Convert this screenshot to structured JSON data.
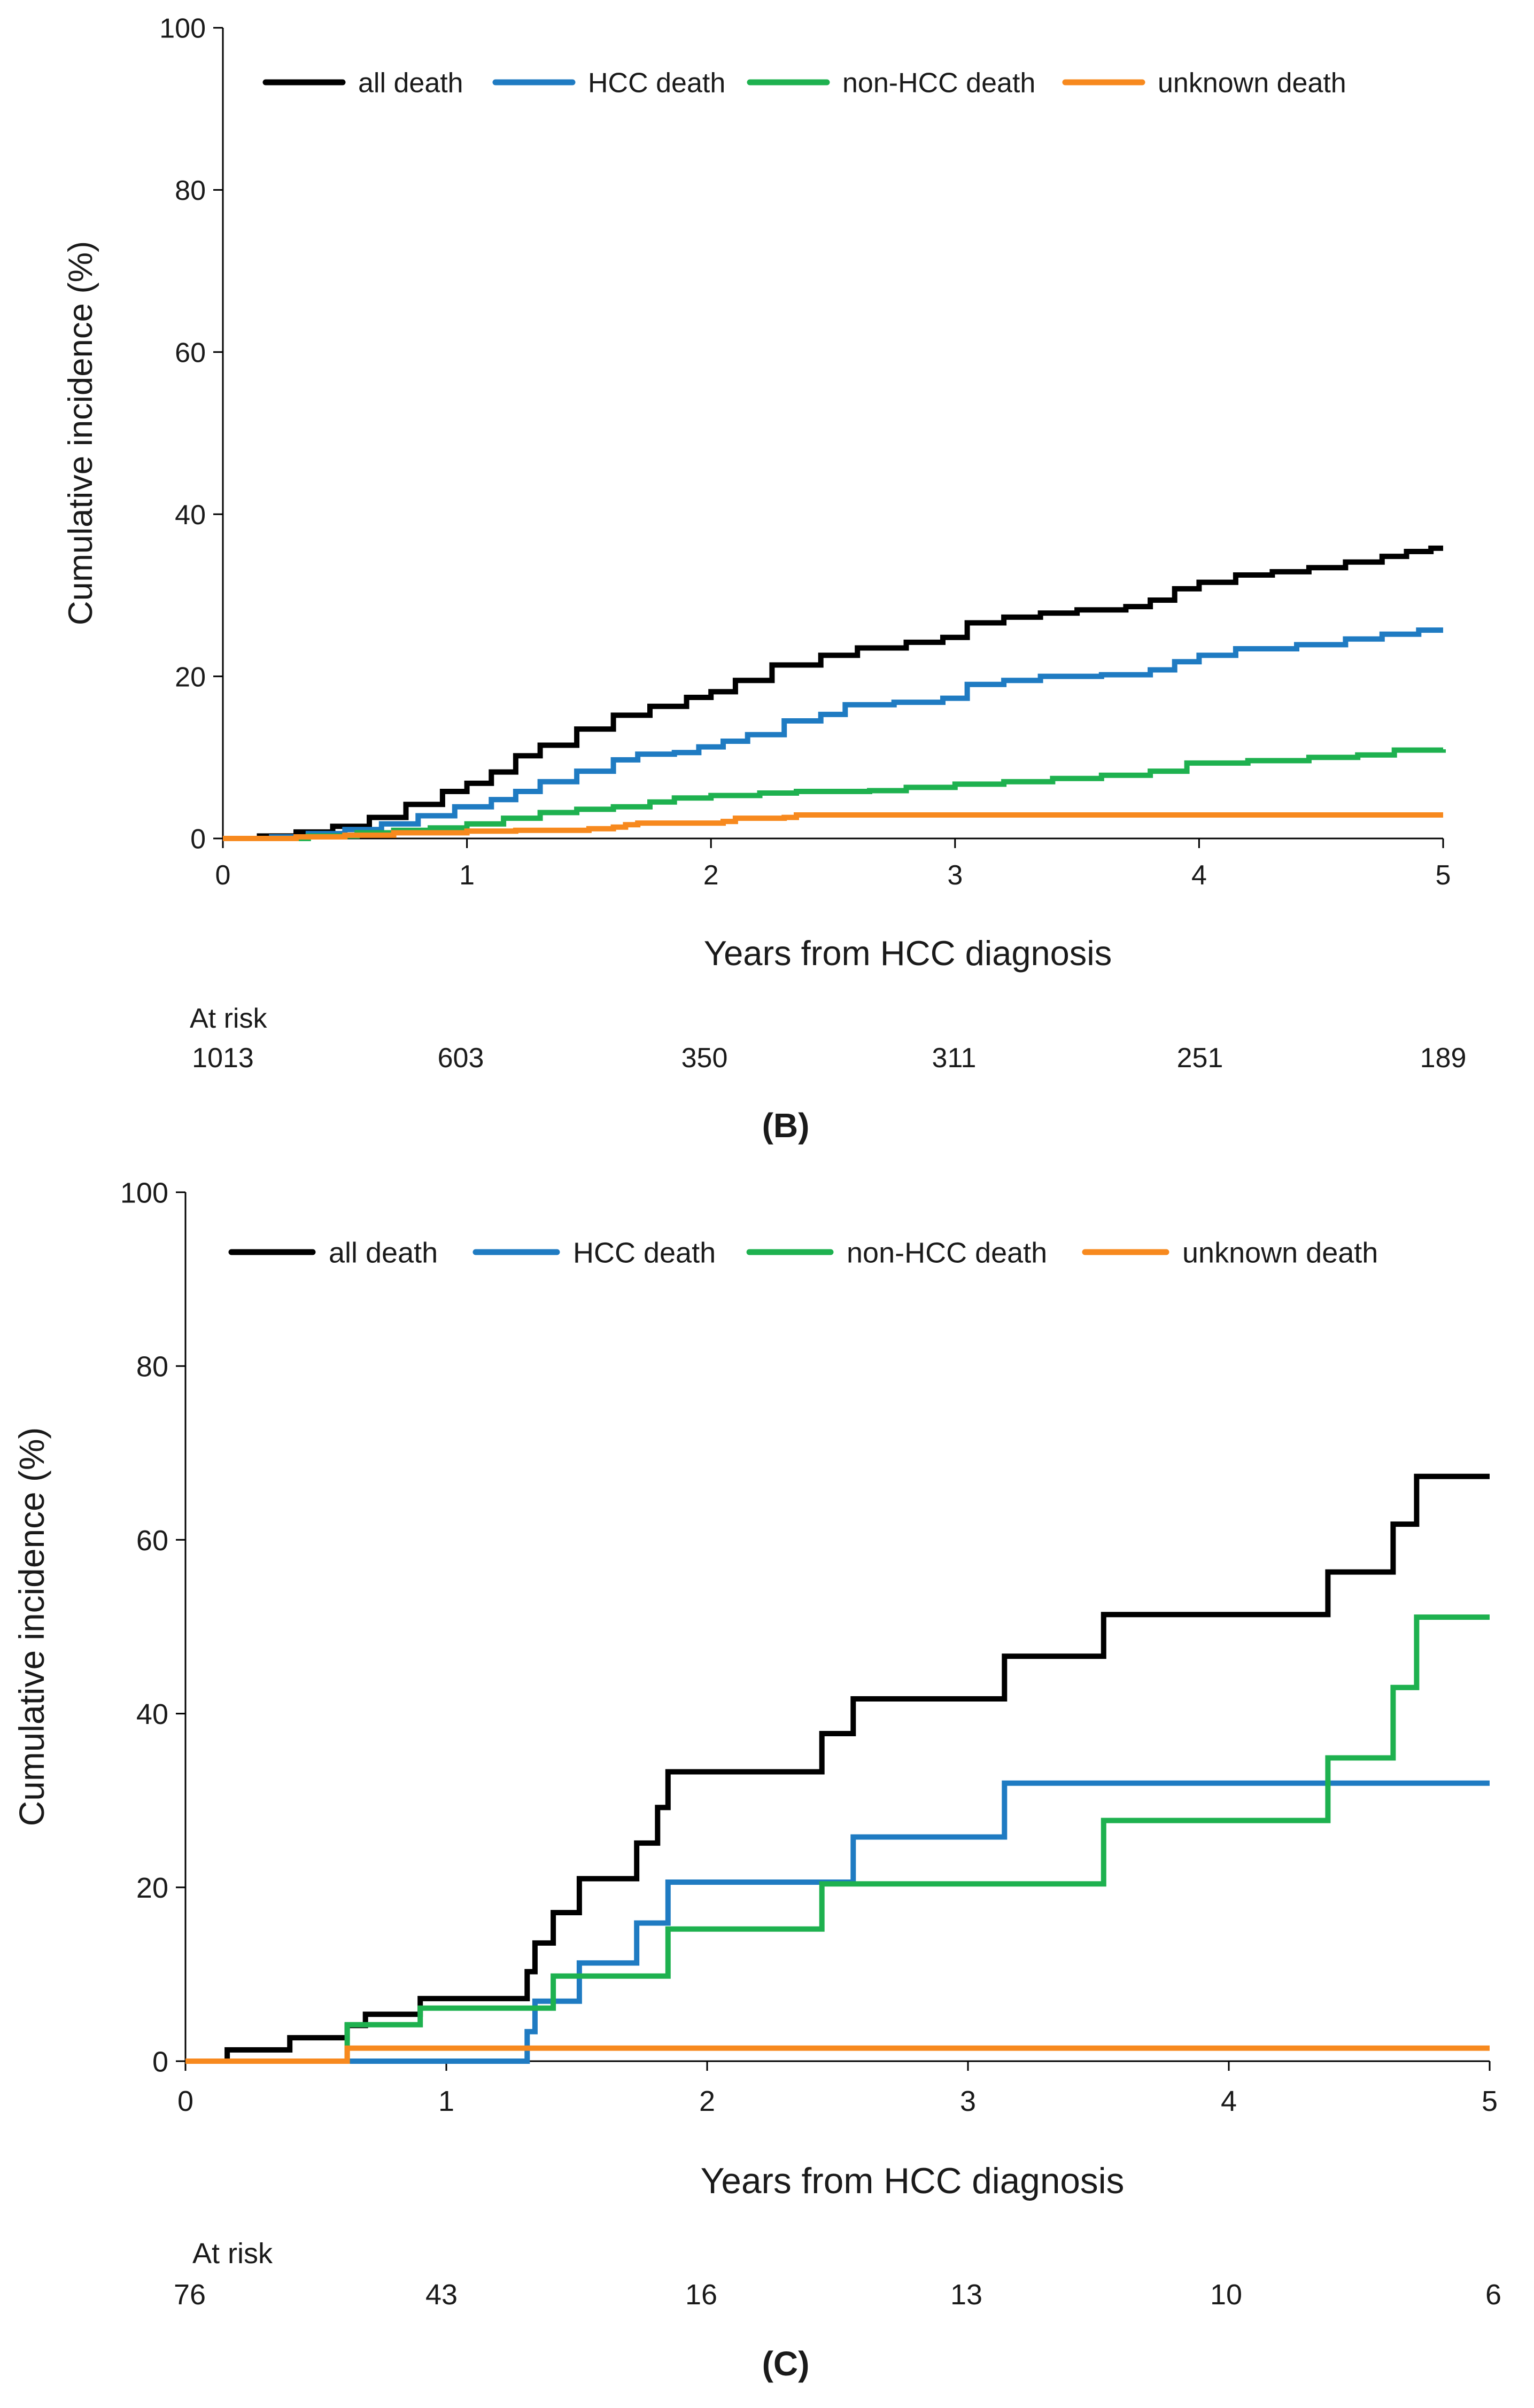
{
  "chart_data": [
    {
      "panel": "B",
      "type": "line",
      "title": "",
      "xlabel": "Years from HCC diagnosis",
      "ylabel": "Cumulative incidence (%)",
      "xlim": [
        0,
        5
      ],
      "ylim": [
        0,
        100
      ],
      "xticks": [
        0,
        1,
        2,
        3,
        4,
        5
      ],
      "yticks": [
        0,
        20,
        40,
        60,
        80,
        100
      ],
      "grid": false,
      "legend_position": "top",
      "at_risk_label": "At risk",
      "at_risk": [
        1013,
        603,
        350,
        311,
        251,
        189
      ],
      "series": [
        {
          "name": "all death",
          "color": "#000000",
          "points": [
            [
              0,
              0
            ],
            [
              0.15,
              0.3
            ],
            [
              0.3,
              0.8
            ],
            [
              0.45,
              1.5
            ],
            [
              0.6,
              2.6
            ],
            [
              0.75,
              4.2
            ],
            [
              0.9,
              5.8
            ],
            [
              1.0,
              6.8
            ],
            [
              1.1,
              8.2
            ],
            [
              1.2,
              10.2
            ],
            [
              1.3,
              11.5
            ],
            [
              1.45,
              13.5
            ],
            [
              1.6,
              15.2
            ],
            [
              1.75,
              16.3
            ],
            [
              1.9,
              17.4
            ],
            [
              2.0,
              18.1
            ],
            [
              2.1,
              19.5
            ],
            [
              2.25,
              21.4
            ],
            [
              2.45,
              22.6
            ],
            [
              2.6,
              23.5
            ],
            [
              2.8,
              24.2
            ],
            [
              2.95,
              24.8
            ],
            [
              3.05,
              26.6
            ],
            [
              3.2,
              27.3
            ],
            [
              3.35,
              27.8
            ],
            [
              3.5,
              28.2
            ],
            [
              3.7,
              28.6
            ],
            [
              3.8,
              29.4
            ],
            [
              3.9,
              30.8
            ],
            [
              4.0,
              31.6
            ],
            [
              4.15,
              32.5
            ],
            [
              4.3,
              32.9
            ],
            [
              4.45,
              33.4
            ],
            [
              4.6,
              34.1
            ],
            [
              4.75,
              34.8
            ],
            [
              4.85,
              35.4
            ],
            [
              4.95,
              35.8
            ],
            [
              5.0,
              35.8
            ]
          ]
        },
        {
          "name": "HCC death",
          "color": "#1f7bc2",
          "points": [
            [
              0,
              0
            ],
            [
              0.2,
              0.2
            ],
            [
              0.35,
              0.6
            ],
            [
              0.5,
              1.1
            ],
            [
              0.65,
              1.8
            ],
            [
              0.8,
              2.8
            ],
            [
              0.95,
              3.9
            ],
            [
              1.1,
              4.8
            ],
            [
              1.2,
              5.8
            ],
            [
              1.3,
              7.0
            ],
            [
              1.45,
              8.3
            ],
            [
              1.6,
              9.7
            ],
            [
              1.7,
              10.4
            ],
            [
              1.85,
              10.6
            ],
            [
              1.95,
              11.3
            ],
            [
              2.05,
              12.0
            ],
            [
              2.15,
              12.8
            ],
            [
              2.3,
              14.5
            ],
            [
              2.45,
              15.3
            ],
            [
              2.55,
              16.5
            ],
            [
              2.75,
              16.8
            ],
            [
              2.95,
              17.3
            ],
            [
              3.05,
              19.0
            ],
            [
              3.2,
              19.5
            ],
            [
              3.35,
              20.0
            ],
            [
              3.6,
              20.2
            ],
            [
              3.8,
              20.8
            ],
            [
              3.9,
              21.8
            ],
            [
              4.0,
              22.6
            ],
            [
              4.15,
              23.4
            ],
            [
              4.4,
              23.9
            ],
            [
              4.6,
              24.6
            ],
            [
              4.75,
              25.2
            ],
            [
              4.9,
              25.7
            ],
            [
              5.0,
              25.7
            ]
          ]
        },
        {
          "name": "non-HCC death",
          "color": "#1eb14f",
          "points": [
            [
              0,
              0
            ],
            [
              0.35,
              0.3
            ],
            [
              0.55,
              0.7
            ],
            [
              0.7,
              1.0
            ],
            [
              0.85,
              1.3
            ],
            [
              1.0,
              1.8
            ],
            [
              1.15,
              2.5
            ],
            [
              1.3,
              3.2
            ],
            [
              1.45,
              3.6
            ],
            [
              1.6,
              3.9
            ],
            [
              1.75,
              4.5
            ],
            [
              1.85,
              5.0
            ],
            [
              2.0,
              5.3
            ],
            [
              2.2,
              5.6
            ],
            [
              2.35,
              5.8
            ],
            [
              2.65,
              5.9
            ],
            [
              2.8,
              6.3
            ],
            [
              3.0,
              6.7
            ],
            [
              3.2,
              7.0
            ],
            [
              3.4,
              7.4
            ],
            [
              3.6,
              7.8
            ],
            [
              3.8,
              8.3
            ],
            [
              3.95,
              9.3
            ],
            [
              4.2,
              9.6
            ],
            [
              4.45,
              10.0
            ],
            [
              4.65,
              10.3
            ],
            [
              4.8,
              10.9
            ],
            [
              5.0,
              11.0
            ]
          ]
        },
        {
          "name": "unknown death",
          "color": "#f7891e",
          "points": [
            [
              0,
              0
            ],
            [
              0.3,
              0.2
            ],
            [
              0.5,
              0.4
            ],
            [
              0.7,
              0.7
            ],
            [
              1.0,
              0.9
            ],
            [
              1.2,
              1.0
            ],
            [
              1.5,
              1.2
            ],
            [
              1.6,
              1.4
            ],
            [
              1.65,
              1.7
            ],
            [
              1.7,
              1.9
            ],
            [
              2.05,
              2.1
            ],
            [
              2.1,
              2.5
            ],
            [
              2.3,
              2.6
            ],
            [
              2.35,
              2.9
            ],
            [
              5.0,
              2.9
            ]
          ]
        }
      ]
    },
    {
      "panel": "C",
      "type": "line",
      "title": "",
      "xlabel": "Years from HCC diagnosis",
      "ylabel": "Cumulative incidence (%)",
      "xlim": [
        0,
        5
      ],
      "ylim": [
        0,
        100
      ],
      "xticks": [
        0,
        1,
        2,
        3,
        4,
        5
      ],
      "yticks": [
        0,
        20,
        40,
        60,
        80,
        100
      ],
      "grid": false,
      "legend_position": "top",
      "at_risk_label": "At risk",
      "at_risk": [
        76,
        43,
        16,
        13,
        10,
        6
      ],
      "series": [
        {
          "name": "all death",
          "color": "#000000",
          "points": [
            [
              0,
              0
            ],
            [
              0.16,
              1.3
            ],
            [
              0.4,
              2.7
            ],
            [
              0.62,
              4.1
            ],
            [
              0.69,
              5.4
            ],
            [
              0.9,
              7.2
            ],
            [
              1.31,
              10.3
            ],
            [
              1.34,
              13.6
            ],
            [
              1.41,
              17.1
            ],
            [
              1.51,
              21.0
            ],
            [
              1.73,
              25.1
            ],
            [
              1.81,
              29.2
            ],
            [
              1.85,
              33.3
            ],
            [
              2.44,
              37.7
            ],
            [
              2.56,
              41.7
            ],
            [
              3.14,
              46.6
            ],
            [
              3.52,
              51.4
            ],
            [
              4.38,
              56.3
            ],
            [
              4.63,
              61.8
            ],
            [
              4.72,
              67.3
            ],
            [
              5.0,
              67.3
            ]
          ]
        },
        {
          "name": "HCC death",
          "color": "#1f7bc2",
          "points": [
            [
              0,
              0
            ],
            [
              1.31,
              3.4
            ],
            [
              1.34,
              6.9
            ],
            [
              1.51,
              11.3
            ],
            [
              1.73,
              15.9
            ],
            [
              1.85,
              20.6
            ],
            [
              2.56,
              25.8
            ],
            [
              3.14,
              32.0
            ],
            [
              5.0,
              32.0
            ]
          ]
        },
        {
          "name": "non-HCC death",
          "color": "#1eb14f",
          "points": [
            [
              0,
              0
            ],
            [
              0.62,
              4.2
            ],
            [
              0.9,
              6.1
            ],
            [
              1.41,
              9.8
            ],
            [
              1.85,
              15.2
            ],
            [
              2.44,
              20.4
            ],
            [
              3.52,
              27.7
            ],
            [
              4.38,
              34.9
            ],
            [
              4.63,
              43.0
            ],
            [
              4.72,
              51.1
            ],
            [
              5.0,
              51.1
            ]
          ]
        },
        {
          "name": "unknown death",
          "color": "#f7891e",
          "points": [
            [
              0,
              0
            ],
            [
              0.62,
              1.5
            ],
            [
              5.0,
              1.5
            ]
          ]
        }
      ]
    }
  ],
  "captions": {
    "panel_b": "(B)",
    "panel_c": "(C)"
  }
}
